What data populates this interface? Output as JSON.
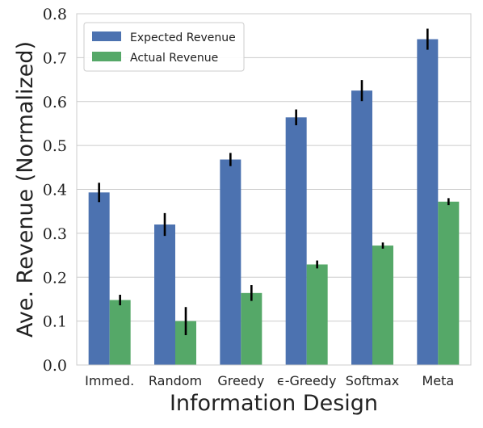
{
  "chart_data": {
    "type": "bar",
    "title": "",
    "xlabel": "Information Design",
    "ylabel": "Ave. Revenue (Normalized)",
    "categories": [
      "Immed.",
      "Random",
      "Greedy",
      "ϵ-Greedy",
      "Softmax",
      "Meta"
    ],
    "series": [
      {
        "name": "Expected Revenue",
        "color": "#4C72B0",
        "values": [
          0.393,
          0.32,
          0.468,
          0.564,
          0.625,
          0.742
        ],
        "errors": [
          0.022,
          0.026,
          0.015,
          0.018,
          0.024,
          0.024
        ]
      },
      {
        "name": "Actual Revenue",
        "color": "#55A868",
        "values": [
          0.148,
          0.1,
          0.164,
          0.229,
          0.272,
          0.372
        ],
        "errors": [
          0.012,
          0.032,
          0.018,
          0.009,
          0.007,
          0.008
        ]
      }
    ],
    "ylim": [
      0,
      0.8
    ],
    "yticks": [
      "0.0",
      "0.1",
      "0.2",
      "0.3",
      "0.4",
      "0.5",
      "0.6",
      "0.7",
      "0.8"
    ],
    "grid": "horizontal",
    "legend_position": "top-left"
  }
}
